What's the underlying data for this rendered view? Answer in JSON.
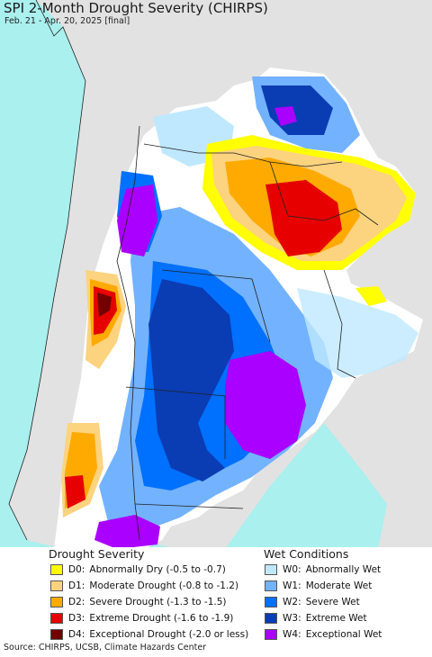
{
  "map": {
    "title": "SPI 2-Month Drought Severity (CHIRPS)",
    "subtitle": "Feb. 21 - Apr. 20, 2025 [final]",
    "colors": {
      "ocean": "#a9f0ee",
      "land_outside": "#e2e2e2",
      "no_change": "#ffffff",
      "borders": "#222222"
    }
  },
  "legend": {
    "drought": {
      "heading": "Drought Severity",
      "items": [
        {
          "code": "D0:",
          "label": "Abnormally Dry (-0.5 to -0.7)",
          "color": "#ffff00"
        },
        {
          "code": "D1:",
          "label": "Moderate Drought (-0.8 to -1.2)",
          "color": "#fcd37f"
        },
        {
          "code": "D2:",
          "label": "Severe Drought (-1.3 to -1.5)",
          "color": "#ffaa00"
        },
        {
          "code": "D3:",
          "label": "Extreme Drought (-1.6 to -1.9)",
          "color": "#e60000"
        },
        {
          "code": "D4:",
          "label": "Exceptional Drought (-2.0 or less)",
          "color": "#730000"
        }
      ]
    },
    "wet": {
      "heading": "Wet Conditions",
      "items": [
        {
          "code": "W0:",
          "label": "Abnormally Wet",
          "color": "#bfe8ff"
        },
        {
          "code": "W1:",
          "label": "Moderate Wet",
          "color": "#73b2ff"
        },
        {
          "code": "W2:",
          "label": "Severe Wet",
          "color": "#0070ff"
        },
        {
          "code": "W3:",
          "label": "Extreme Wet",
          "color": "#0a3cb4"
        },
        {
          "code": "W4:",
          "label": "Exceptional Wet",
          "color": "#aa00ff"
        }
      ]
    }
  },
  "footer": {
    "source": "Source: CHIRPS, UCSB, Climate Hazards Center"
  }
}
